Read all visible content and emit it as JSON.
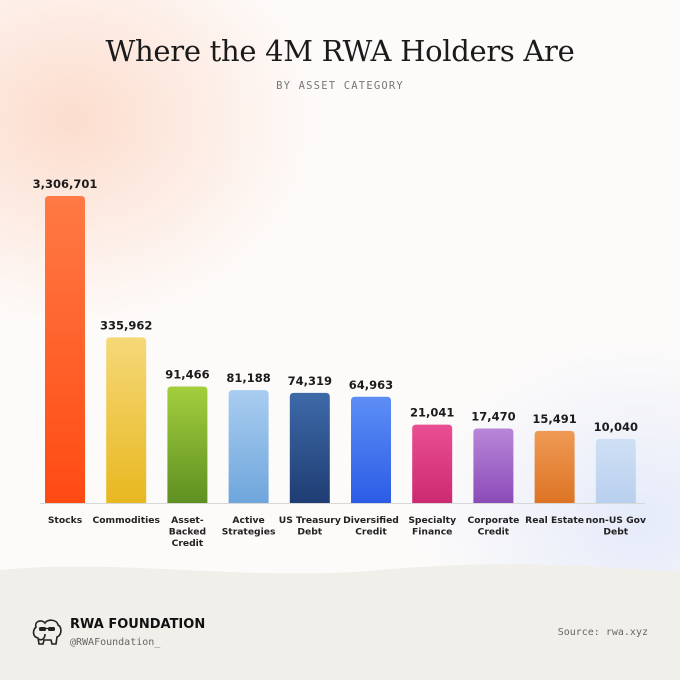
{
  "header": {
    "title": "Where the 4M RWA Holders Are",
    "subtitle": "BY ASSET CATEGORY"
  },
  "chart_data": {
    "type": "bar",
    "title": "Where the 4M RWA Holders Are",
    "subtitle": "BY ASSET CATEGORY",
    "categories": [
      "Stocks",
      "Commodities",
      "Asset-Backed Credit",
      "Active Strategies",
      "US Treasury Debt",
      "Diversified Credit",
      "Specialty Finance",
      "Corporate Credit",
      "Real Estate",
      "non-US Gov Debt"
    ],
    "category_lines": [
      [
        "Stocks"
      ],
      [
        "Commodities"
      ],
      [
        "Asset-",
        "Backed",
        "Credit"
      ],
      [
        "Active",
        "Strategies"
      ],
      [
        "US Treasury",
        "Debt"
      ],
      [
        "Diversified",
        "Credit"
      ],
      [
        "Specialty",
        "Finance"
      ],
      [
        "Corporate",
        "Credit"
      ],
      [
        "Real Estate"
      ],
      [
        "non-US Gov",
        "Debt"
      ]
    ],
    "values": [
      3306701,
      335962,
      91466,
      81188,
      74319,
      64963,
      21041,
      17470,
      15491,
      10040
    ],
    "value_labels": [
      "3,306,701",
      "335,962",
      "91,466",
      "81,188",
      "74,319",
      "64,963",
      "21,041",
      "17,470",
      "15,491",
      "10,040"
    ],
    "display_scale": "compressed (non-linear)",
    "bar_colors": [
      [
        "#ff7a45",
        "#ff4a12"
      ],
      [
        "#f5d878",
        "#e8b820"
      ],
      [
        "#a3cf3d",
        "#5f8f22"
      ],
      [
        "#a9cdf0",
        "#6fa6dc"
      ],
      [
        "#3e6aa8",
        "#1f3d73"
      ],
      [
        "#5d8ef5",
        "#2c5ce6"
      ],
      [
        "#ea4f93",
        "#cc2a70"
      ],
      [
        "#b887d8",
        "#8c4bb8"
      ],
      [
        "#ef9a55",
        "#dd7424"
      ],
      [
        "#cfe0f5",
        "#b8cfee"
      ]
    ],
    "grid": false,
    "legend": "none"
  },
  "footer": {
    "brand": "RWA FOUNDATION",
    "handle": "@RWAFoundation_",
    "source": "Source: rwa.xyz",
    "logo_icon": "elephant-with-sunglasses-icon"
  }
}
